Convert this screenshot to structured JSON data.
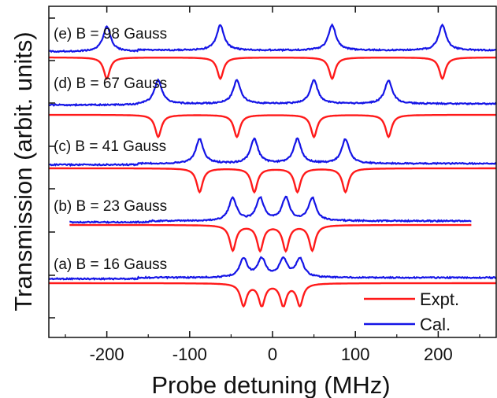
{
  "chart_data": {
    "type": "line",
    "xlabel": "Probe detuning (MHz)",
    "ylabel": "Transmission (arbit. units)",
    "xlim": [
      -270,
      270
    ],
    "x_ticks": [
      -200,
      -100,
      0,
      100,
      200
    ],
    "x_tick_labels": [
      "-200",
      "-100",
      "0",
      "100",
      "200"
    ],
    "legend": {
      "placement": "bottom-right",
      "entries": [
        {
          "label": "Expt.",
          "color": "#ff1a1a"
        },
        {
          "label": "Cal.",
          "color": "#1414e6"
        }
      ]
    },
    "series_style": {
      "Expt.": {
        "color": "#ff1a1a",
        "direction": "dip"
      },
      "Cal.": {
        "color": "#1414e6",
        "direction": "peak"
      }
    },
    "panels": [
      {
        "label": "(a) B = 16 Gauss",
        "peaks_mhz": [
          -35,
          -13,
          13,
          33
        ],
        "x_range": [
          -270,
          270
        ]
      },
      {
        "label": "(b) B = 23 Gauss",
        "peaks_mhz": [
          -48,
          -15,
          16,
          48
        ],
        "x_range": [
          -245,
          240
        ]
      },
      {
        "label": "(c) B = 41 Gauss",
        "peaks_mhz": [
          -88,
          -22,
          30,
          88
        ],
        "x_range": [
          -270,
          270
        ]
      },
      {
        "label": "(d) B = 67 Gauss",
        "peaks_mhz": [
          -138,
          -43,
          50,
          140
        ],
        "x_range": [
          -270,
          270
        ]
      },
      {
        "label": "(e) B = 98 Gauss",
        "peaks_mhz": [
          -200,
          -63,
          72,
          205
        ],
        "x_range": [
          -270,
          270
        ]
      }
    ]
  }
}
